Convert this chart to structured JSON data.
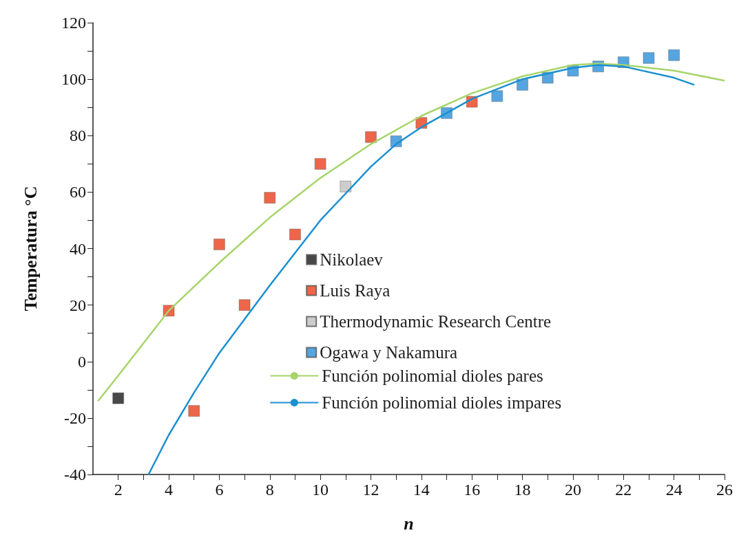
{
  "chart_data": {
    "type": "scatter",
    "xlabel": "n",
    "ylabel": "Temperatura °C",
    "xlim": [
      1,
      26
    ],
    "xticks": [
      2,
      {
        "value": 3,
        "label": null
      },
      4,
      {
        "value": 5,
        "label": null
      },
      6,
      {
        "value": 7,
        "label": null
      },
      8,
      {
        "value": 9,
        "label": null
      },
      10,
      {
        "value": 11,
        "label": null
      },
      12,
      {
        "value": 13,
        "label": null
      },
      14,
      {
        "value": 15,
        "label": null
      },
      16,
      {
        "value": 17,
        "label": null
      },
      18,
      {
        "value": 19,
        "label": null
      },
      20,
      {
        "value": 21,
        "label": null
      },
      22,
      {
        "value": 23,
        "label": null
      },
      24,
      {
        "value": 25,
        "label": null
      },
      26
    ],
    "ylim": [
      -40,
      120
    ],
    "yticks": [
      -40,
      {
        "value": -30,
        "label": null
      },
      -20,
      {
        "value": -10,
        "label": null
      },
      0,
      {
        "value": 10,
        "label": null
      },
      20,
      {
        "value": 30,
        "label": null
      },
      40,
      {
        "value": 50,
        "label": null
      },
      60,
      {
        "value": 70,
        "label": null
      },
      80,
      {
        "value": 90,
        "label": null
      },
      100,
      {
        "value": 110,
        "label": null
      },
      120
    ],
    "marker": "square",
    "legend": "bottom right",
    "grid": false,
    "series": [
      {
        "name": "Nikolaev",
        "color": "#1a1a1a",
        "x": [
          2
        ],
        "values": [
          -13
        ]
      },
      {
        "name": "Luis Raya",
        "color": "#e8401c",
        "x": [
          4,
          5,
          6,
          7,
          8,
          9,
          10,
          12,
          14,
          16
        ],
        "values": [
          18,
          -17.5,
          41.5,
          20,
          58,
          45,
          70,
          79.5,
          84.5,
          92
        ]
      },
      {
        "name": "Thermodynamic Research Centre",
        "color": "#c0c0c0",
        "x": [
          11
        ],
        "values": [
          62
        ]
      },
      {
        "name": "Ogawa y Nakamura",
        "color": "#2a8fd8",
        "x": [
          13,
          15,
          17,
          18,
          19,
          20,
          21,
          22,
          23,
          24
        ],
        "values": [
          78,
          88,
          94,
          98,
          100.5,
          103,
          104.5,
          106,
          107.5,
          108.5
        ]
      },
      {
        "name": "Función polinomial dioles pares",
        "type": "line",
        "marker": "none",
        "color": "#a6d46a",
        "x": [
          1.2,
          2,
          4,
          6,
          8,
          10,
          12,
          14,
          16,
          18,
          20,
          21,
          22,
          24,
          26
        ],
        "values": [
          -14,
          -5,
          18,
          35,
          51,
          65,
          77,
          87,
          95,
          101,
          105,
          105.5,
          105,
          103,
          99.5
        ]
      },
      {
        "name": "Función polinomial dioles impares",
        "type": "line",
        "marker": "none",
        "color": "#1b8fd0",
        "x": [
          3.2,
          4,
          5,
          6,
          7,
          8,
          10,
          12,
          13,
          14,
          15,
          16,
          18,
          20,
          21,
          22,
          24,
          24.8
        ],
        "values": [
          -40,
          -26,
          -11,
          3,
          15,
          27,
          50,
          69,
          77,
          83,
          88,
          93,
          100,
          104,
          105,
          104.5,
          100.5,
          98
        ]
      }
    ]
  }
}
